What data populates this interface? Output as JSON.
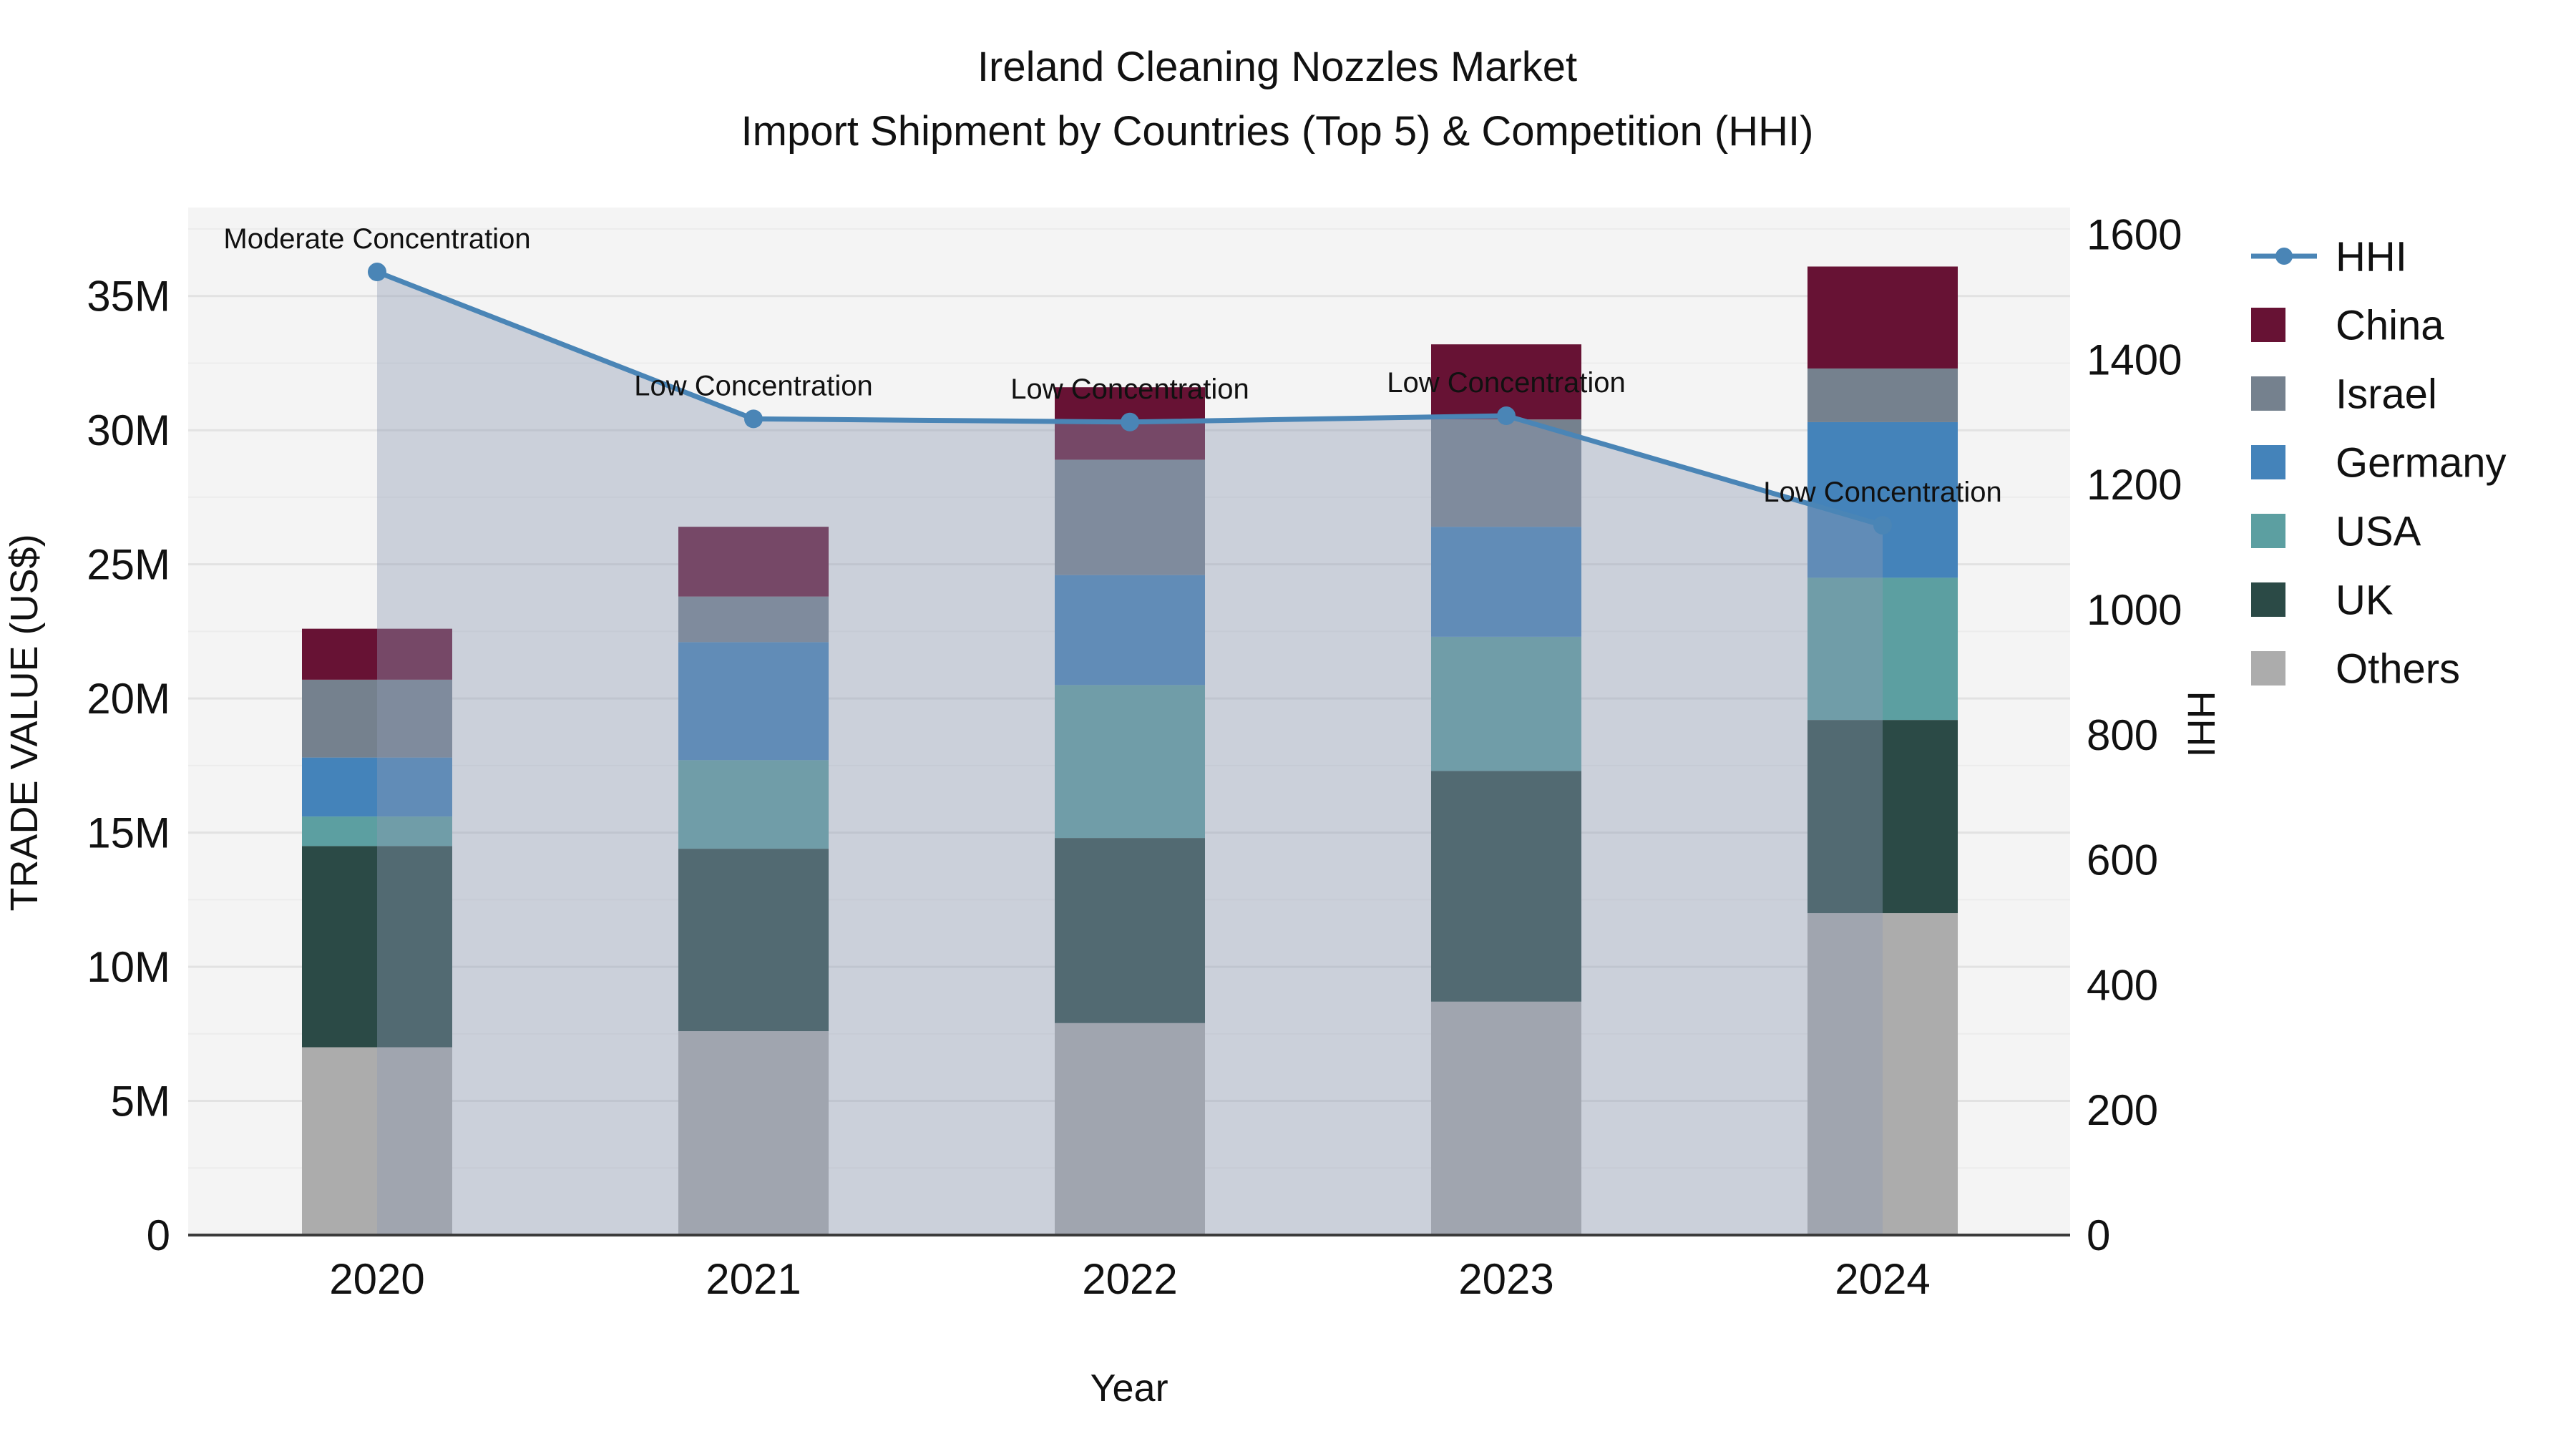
{
  "title": {
    "line1": "Ireland Cleaning Nozzles Market",
    "line2": "Import Shipment by Countries (Top 5) & Competition (HHI)"
  },
  "chart_data": {
    "type": "bar+line",
    "title": "Ireland Cleaning Nozzles Market\nImport Shipment by Countries (Top 5) & Competition (HHI)",
    "categories": [
      "2020",
      "2021",
      "2022",
      "2023",
      "2024"
    ],
    "bar_stack_bottom_to_top": [
      "Others",
      "UK",
      "USA",
      "Germany",
      "Israel",
      "China"
    ],
    "series": [
      {
        "name": "Others",
        "type": "bar",
        "color": "#ACACAC",
        "values": [
          7.0,
          7.6,
          7.9,
          8.7,
          12.0
        ]
      },
      {
        "name": "UK",
        "type": "bar",
        "color": "#2B4A46",
        "values": [
          7.5,
          6.8,
          6.9,
          8.6,
          7.2
        ]
      },
      {
        "name": "USA",
        "type": "bar",
        "color": "#5C9FA1",
        "values": [
          1.1,
          3.3,
          5.7,
          5.0,
          5.3
        ]
      },
      {
        "name": "Germany",
        "type": "bar",
        "color": "#4483BA",
        "values": [
          2.2,
          4.4,
          4.1,
          4.1,
          5.8
        ]
      },
      {
        "name": "Israel",
        "type": "bar",
        "color": "#75818E",
        "values": [
          2.9,
          1.7,
          4.3,
          4.0,
          2.0
        ]
      },
      {
        "name": "China",
        "type": "bar",
        "color": "#671234",
        "values": [
          1.9,
          2.6,
          2.7,
          2.8,
          3.8
        ]
      }
    ],
    "bar_totals": [
      22.6,
      26.4,
      31.6,
      33.2,
      36.1
    ],
    "line_series": {
      "name": "HHI",
      "color": "#4A85B6",
      "area_fill": "rgba(142,156,181,0.40)",
      "values": [
        1540,
        1305,
        1300,
        1310,
        1135
      ]
    },
    "annotations": [
      {
        "category": "2020",
        "text": "Moderate Concentration"
      },
      {
        "category": "2021",
        "text": "Low Concentration"
      },
      {
        "category": "2022",
        "text": "Low Concentration"
      },
      {
        "category": "2023",
        "text": "Low Concentration"
      },
      {
        "category": "2024",
        "text": "Low Concentration"
      }
    ],
    "left_axis": {
      "title": "TRADE VALUE (US$)",
      "tick_values": [
        0,
        5,
        10,
        15,
        20,
        25,
        30,
        35
      ],
      "tick_suffix": "M",
      "max": 38.3,
      "grid": true
    },
    "right_axis": {
      "title": "HHI",
      "tick_values": [
        0,
        200,
        400,
        600,
        800,
        1000,
        1200,
        1400,
        1600
      ],
      "max": 1643,
      "grid": false
    },
    "x_axis": {
      "title": "Year"
    },
    "legend": {
      "position": "right",
      "entries": [
        {
          "label": "HHI",
          "swatch": "line",
          "color": "#4A85B6"
        },
        {
          "label": "China",
          "swatch": "box",
          "color": "#671234"
        },
        {
          "label": "Israel",
          "swatch": "box",
          "color": "#75818E"
        },
        {
          "label": "Germany",
          "swatch": "box",
          "color": "#4483BA"
        },
        {
          "label": "USA",
          "swatch": "box",
          "color": "#5C9FA1"
        },
        {
          "label": "UK",
          "swatch": "box",
          "color": "#2B4A46"
        },
        {
          "label": "Others",
          "swatch": "box",
          "color": "#ACACAC"
        }
      ]
    },
    "plot_background": "#F4F4F4",
    "gridline_color": "#E2E2E2",
    "minor_gridline_color": "#ECECEC",
    "axis_line_color": "#3B3B3B"
  }
}
